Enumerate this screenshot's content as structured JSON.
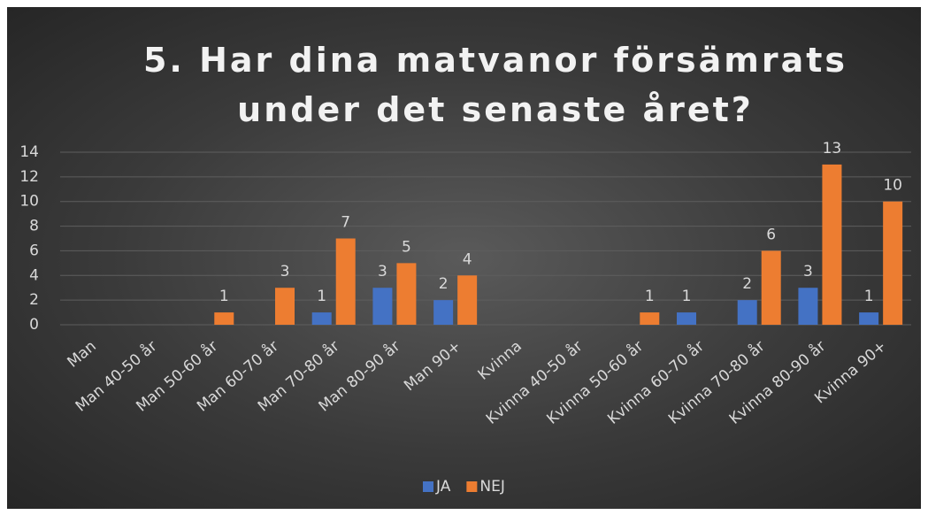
{
  "chart_data": {
    "type": "bar",
    "title": "5. Har dina matvanor försämrats under det senaste året?",
    "categories": [
      "Man",
      "Man 40-50 år",
      "Man 50-60 år",
      "Man 60-70 år",
      "Man 70-80 år",
      "Man 80-90 år",
      "Man 90+",
      "Kvinna",
      "Kvinna 40-50 år",
      "Kvinna 50-60 år",
      "Kvinna 60-70 år",
      "Kvinna 70-80 år",
      "Kvinna 80-90 år",
      "Kvinna 90+"
    ],
    "series": [
      {
        "name": "JA",
        "color": "#4472c4",
        "values": [
          null,
          null,
          null,
          null,
          1,
          3,
          2,
          null,
          null,
          null,
          1,
          2,
          3,
          1
        ]
      },
      {
        "name": "NEJ",
        "color": "#ed7d31",
        "values": [
          null,
          null,
          1,
          3,
          7,
          5,
          4,
          null,
          null,
          1,
          null,
          6,
          13,
          10
        ]
      }
    ],
    "ylim": [
      0,
      14
    ],
    "yticks": [
      0,
      2,
      4,
      6,
      8,
      10,
      12,
      14
    ],
    "grid": true,
    "legend": "bottom"
  }
}
